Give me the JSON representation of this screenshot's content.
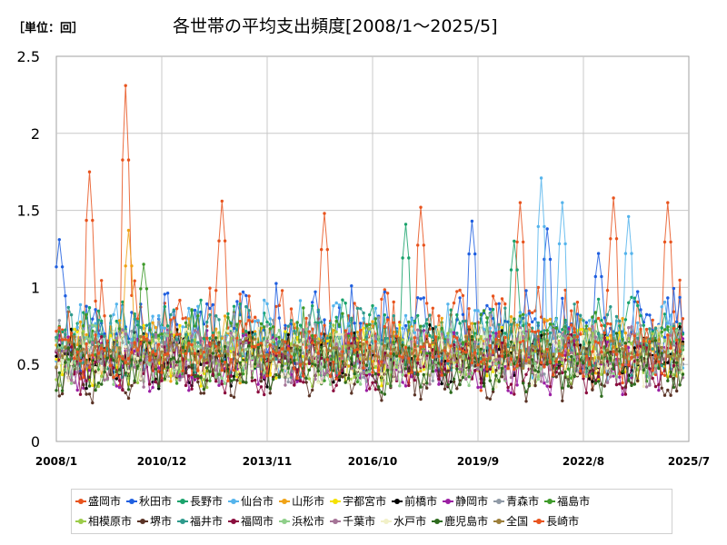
{
  "unit_label": "［単位：回］",
  "chart_data": {
    "type": "line",
    "title": "各世帯の平均支出頻度[2008/1～2025/5]",
    "ylim": [
      0,
      2.5
    ],
    "yticks": [
      "0",
      "0.5",
      "1",
      "1.5",
      "2",
      "2.5"
    ],
    "xticks": [
      "2008/1",
      "2010/12",
      "2013/11",
      "2016/10",
      "2019/9",
      "2022/8",
      "2025/7"
    ],
    "grid": true,
    "legend_position": "bottom",
    "series": [
      {
        "name": "盛岡市",
        "color": "#e8541e",
        "base": 0.7,
        "amp": 0.28,
        "peaks": [
          [
            0.9,
            1.75
          ],
          [
            1.9,
            2.31
          ],
          [
            4.6,
            1.56
          ],
          [
            7.4,
            1.48
          ],
          [
            10.1,
            1.52
          ],
          [
            12.8,
            1.55
          ],
          [
            15.4,
            1.58
          ],
          [
            16.9,
            1.55
          ]
        ]
      },
      {
        "name": "秋田市",
        "color": "#1f5fe0",
        "base": 0.72,
        "amp": 0.22,
        "peaks": [
          [
            0.1,
            1.31
          ],
          [
            11.5,
            1.43
          ],
          [
            13.6,
            1.38
          ],
          [
            15.0,
            1.22
          ]
        ]
      },
      {
        "name": "長野市",
        "color": "#1aa36c",
        "base": 0.68,
        "amp": 0.2,
        "peaks": [
          [
            9.7,
            1.41
          ],
          [
            12.7,
            1.3
          ]
        ]
      },
      {
        "name": "仙台市",
        "color": "#55b4ec",
        "base": 0.66,
        "amp": 0.2,
        "peaks": [
          [
            13.4,
            1.71
          ],
          [
            14.0,
            1.55
          ],
          [
            15.8,
            1.46
          ]
        ]
      },
      {
        "name": "山形市",
        "color": "#f0a316",
        "base": 0.6,
        "amp": 0.16,
        "peaks": [
          [
            2.0,
            1.37
          ]
        ]
      },
      {
        "name": "宇都宮市",
        "color": "#f5e200",
        "base": 0.56,
        "amp": 0.15,
        "peaks": []
      },
      {
        "name": "前橋市",
        "color": "#000000",
        "base": 0.55,
        "amp": 0.15,
        "peaks": []
      },
      {
        "name": "静岡市",
        "color": "#9b1fa3",
        "base": 0.52,
        "amp": 0.16,
        "peaks": []
      },
      {
        "name": "青森市",
        "color": "#909aa6",
        "base": 0.6,
        "amp": 0.17,
        "peaks": []
      },
      {
        "name": "福島市",
        "color": "#3e9a2a",
        "base": 0.62,
        "amp": 0.18,
        "peaks": [
          [
            2.4,
            1.15
          ]
        ]
      },
      {
        "name": "相模原市",
        "color": "#9ccc4a",
        "base": 0.55,
        "amp": 0.15,
        "peaks": []
      },
      {
        "name": "堺市",
        "color": "#5a3326",
        "base": 0.46,
        "amp": 0.15,
        "peaks": []
      },
      {
        "name": "福井市",
        "color": "#2e9a8c",
        "base": 0.64,
        "amp": 0.18,
        "peaks": []
      },
      {
        "name": "福岡市",
        "color": "#8b0d3e",
        "base": 0.5,
        "amp": 0.15,
        "peaks": []
      },
      {
        "name": "浜松市",
        "color": "#8fcf8a",
        "base": 0.55,
        "amp": 0.15,
        "peaks": []
      },
      {
        "name": "千葉市",
        "color": "#a57497",
        "base": 0.55,
        "amp": 0.15,
        "peaks": []
      },
      {
        "name": "水戸市",
        "color": "#f1f0c8",
        "base": 0.56,
        "amp": 0.15,
        "peaks": []
      },
      {
        "name": "鹿児島市",
        "color": "#2e6b1e",
        "base": 0.5,
        "amp": 0.15,
        "peaks": []
      },
      {
        "name": "全国",
        "color": "#9c7f3a",
        "base": 0.58,
        "amp": 0.08,
        "peaks": []
      },
      {
        "name": "長崎市",
        "color": "#e8541e",
        "base": 0.6,
        "amp": 0.16,
        "peaks": []
      }
    ]
  }
}
